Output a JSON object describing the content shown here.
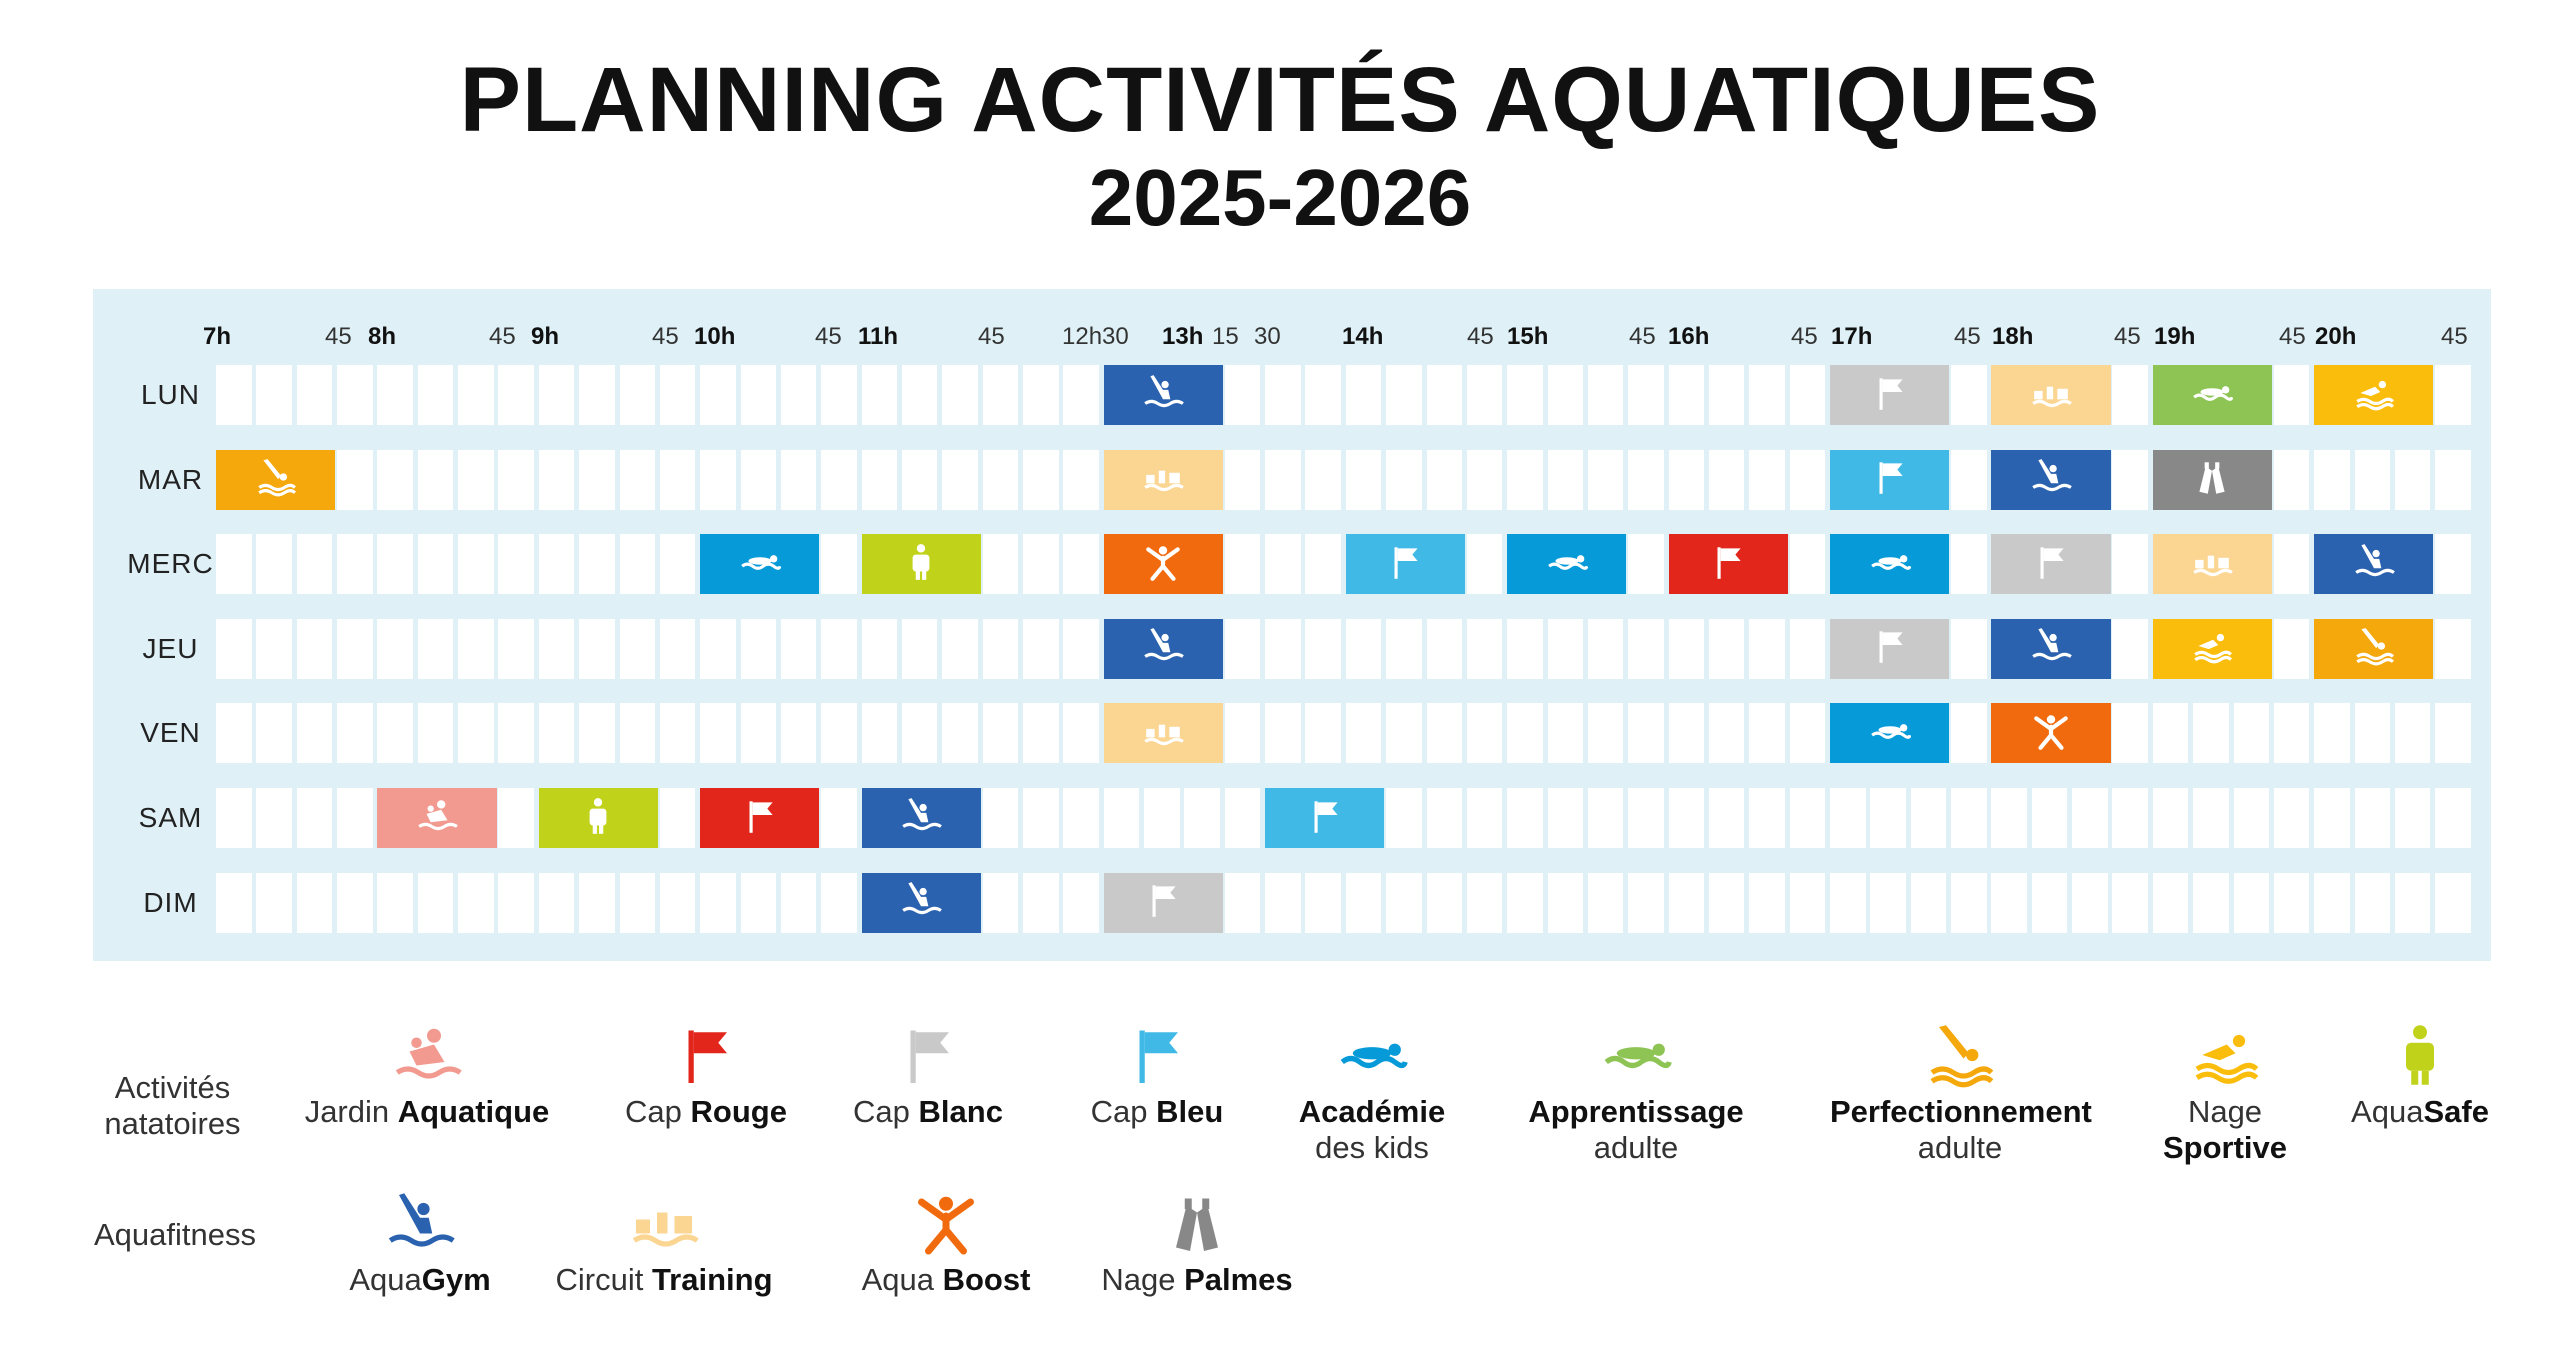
{
  "header": {
    "title": "PLANNING ACTIVITÉS AQUATIQUES",
    "subtitle": "2025-2026"
  },
  "schedule": {
    "time_ticks": [
      {
        "label": "7h",
        "hour": true
      },
      {
        "label": "45",
        "hour": false
      },
      {
        "label": "8h",
        "hour": true
      },
      {
        "label": "45",
        "hour": false
      },
      {
        "label": "9h",
        "hour": true
      },
      {
        "label": "45",
        "hour": false
      },
      {
        "label": "10h",
        "hour": true
      },
      {
        "label": "45",
        "hour": false
      },
      {
        "label": "11h",
        "hour": true
      },
      {
        "label": "45",
        "hour": false
      },
      {
        "label": "12h30",
        "hour": false
      },
      {
        "label": "13h",
        "hour": true
      },
      {
        "label": "15",
        "hour": false
      },
      {
        "label": "30",
        "hour": false
      },
      {
        "label": "14h",
        "hour": true
      },
      {
        "label": "45",
        "hour": false
      },
      {
        "label": "15h",
        "hour": true
      },
      {
        "label": "45",
        "hour": false
      },
      {
        "label": "16h",
        "hour": true
      },
      {
        "label": "45",
        "hour": false
      },
      {
        "label": "17h",
        "hour": true
      },
      {
        "label": "45",
        "hour": false
      },
      {
        "label": "18h",
        "hour": true
      },
      {
        "label": "45",
        "hour": false
      },
      {
        "label": "19h",
        "hour": true
      },
      {
        "label": "45",
        "hour": false
      },
      {
        "label": "20h",
        "hour": true
      },
      {
        "label": "45",
        "hour": false
      }
    ],
    "days": [
      "LUN",
      "MAR",
      "MERC",
      "JEU",
      "VEN",
      "SAM",
      "DIM"
    ],
    "slots_per_day": 56,
    "activities": [
      {
        "day": 0,
        "slot": 22,
        "span": 3,
        "type": "aquagym"
      },
      {
        "day": 0,
        "slot": 40,
        "span": 3,
        "type": "cap_blanc"
      },
      {
        "day": 0,
        "slot": 44,
        "span": 3,
        "type": "circuit_training"
      },
      {
        "day": 0,
        "slot": 48,
        "span": 3,
        "type": "apprentissage"
      },
      {
        "day": 0,
        "slot": 52,
        "span": 3,
        "type": "nage_sportive"
      },
      {
        "day": 1,
        "slot": 0,
        "span": 3,
        "type": "perfectionnement"
      },
      {
        "day": 1,
        "slot": 22,
        "span": 3,
        "type": "circuit_training"
      },
      {
        "day": 1,
        "slot": 40,
        "span": 3,
        "type": "cap_bleu"
      },
      {
        "day": 1,
        "slot": 44,
        "span": 3,
        "type": "aquagym"
      },
      {
        "day": 1,
        "slot": 48,
        "span": 3,
        "type": "nage_palmes"
      },
      {
        "day": 2,
        "slot": 12,
        "span": 3,
        "type": "academie"
      },
      {
        "day": 2,
        "slot": 16,
        "span": 3,
        "type": "aquasafe"
      },
      {
        "day": 2,
        "slot": 22,
        "span": 3,
        "type": "aqua_boost"
      },
      {
        "day": 2,
        "slot": 28,
        "span": 3,
        "type": "cap_bleu"
      },
      {
        "day": 2,
        "slot": 32,
        "span": 3,
        "type": "academie"
      },
      {
        "day": 2,
        "slot": 36,
        "span": 3,
        "type": "cap_rouge"
      },
      {
        "day": 2,
        "slot": 40,
        "span": 3,
        "type": "academie"
      },
      {
        "day": 2,
        "slot": 44,
        "span": 3,
        "type": "cap_blanc"
      },
      {
        "day": 2,
        "slot": 48,
        "span": 3,
        "type": "circuit_training"
      },
      {
        "day": 2,
        "slot": 52,
        "span": 3,
        "type": "aquagym"
      },
      {
        "day": 3,
        "slot": 22,
        "span": 3,
        "type": "aquagym"
      },
      {
        "day": 3,
        "slot": 40,
        "span": 3,
        "type": "cap_blanc"
      },
      {
        "day": 3,
        "slot": 44,
        "span": 3,
        "type": "aquagym"
      },
      {
        "day": 3,
        "slot": 48,
        "span": 3,
        "type": "nage_sportive"
      },
      {
        "day": 3,
        "slot": 52,
        "span": 3,
        "type": "perfectionnement"
      },
      {
        "day": 4,
        "slot": 22,
        "span": 3,
        "type": "circuit_training"
      },
      {
        "day": 4,
        "slot": 40,
        "span": 3,
        "type": "academie"
      },
      {
        "day": 4,
        "slot": 44,
        "span": 3,
        "type": "aqua_boost"
      },
      {
        "day": 5,
        "slot": 4,
        "span": 3,
        "type": "jardin"
      },
      {
        "day": 5,
        "slot": 8,
        "span": 3,
        "type": "aquasafe"
      },
      {
        "day": 5,
        "slot": 12,
        "span": 3,
        "type": "cap_rouge"
      },
      {
        "day": 5,
        "slot": 16,
        "span": 3,
        "type": "aquagym"
      },
      {
        "day": 5,
        "slot": 26,
        "span": 3,
        "type": "cap_bleu"
      },
      {
        "day": 6,
        "slot": 16,
        "span": 3,
        "type": "aquagym"
      },
      {
        "day": 6,
        "slot": 22,
        "span": 3,
        "type": "cap_blanc"
      }
    ]
  },
  "activity_types": {
    "jardin": {
      "color": "#f29a90",
      "icon": "jardin-aquatique-icon"
    },
    "cap_rouge": {
      "color": "#e2261c",
      "icon": "red-flag-icon"
    },
    "cap_blanc": {
      "color": "#c9c9c9",
      "icon": "white-flag-icon"
    },
    "cap_bleu": {
      "color": "#40b9e6",
      "icon": "blue-flag-icon"
    },
    "academie": {
      "color": "#069ad8",
      "icon": "swimmer-kids-icon"
    },
    "apprentissage": {
      "color": "#8ec453",
      "icon": "swimmer-adult-icon"
    },
    "perfectionnement": {
      "color": "#f4a80b",
      "icon": "diver-icon"
    },
    "nage_sportive": {
      "color": "#fbbd0b",
      "icon": "sport-swimmer-icon"
    },
    "aquasafe": {
      "color": "#c1d21a",
      "icon": "life-vest-icon"
    },
    "aquagym": {
      "color": "#2a62b0",
      "icon": "aquagym-icon"
    },
    "circuit_training": {
      "color": "#fbd693",
      "icon": "circuit-training-icon"
    },
    "aqua_boost": {
      "color": "#f16b0e",
      "icon": "boost-icon"
    },
    "nage_palmes": {
      "color": "#888888",
      "icon": "fins-icon"
    }
  },
  "legend": {
    "categories": {
      "natatoires": "Activités natatoires",
      "aquafitness": "Aquafitness"
    },
    "natatoires": [
      {
        "type": "jardin",
        "pre": "Jardin ",
        "bold": "Aquatique",
        "post": ""
      },
      {
        "type": "cap_rouge",
        "pre": "Cap ",
        "bold": "Rouge",
        "post": ""
      },
      {
        "type": "cap_blanc",
        "pre": "Cap ",
        "bold": "Blanc",
        "post": ""
      },
      {
        "type": "cap_bleu",
        "pre": "Cap ",
        "bold": "Bleu",
        "post": ""
      },
      {
        "type": "academie",
        "pre": "",
        "bold": "Académie",
        "post": "des kids"
      },
      {
        "type": "apprentissage",
        "pre": "",
        "bold": "Apprentissage",
        "post": "adulte"
      },
      {
        "type": "perfectionnement",
        "pre": "",
        "bold": "Perfectionnement",
        "post": "adulte"
      },
      {
        "type": "nage_sportive",
        "pre": "Nage",
        "bold": "Sportive",
        "post": ""
      },
      {
        "type": "aquasafe",
        "pre": "Aqua",
        "bold": "Safe",
        "post": ""
      }
    ],
    "aquafitness": [
      {
        "type": "aquagym",
        "pre": "Aqua",
        "bold": "Gym",
        "post": ""
      },
      {
        "type": "circuit_training",
        "pre": "Circuit ",
        "bold": "Training",
        "post": ""
      },
      {
        "type": "aqua_boost",
        "pre": "Aqua ",
        "bold": "Boost",
        "post": ""
      },
      {
        "type": "nage_palmes",
        "pre": "Nage ",
        "bold": "Palmes",
        "post": ""
      }
    ]
  }
}
